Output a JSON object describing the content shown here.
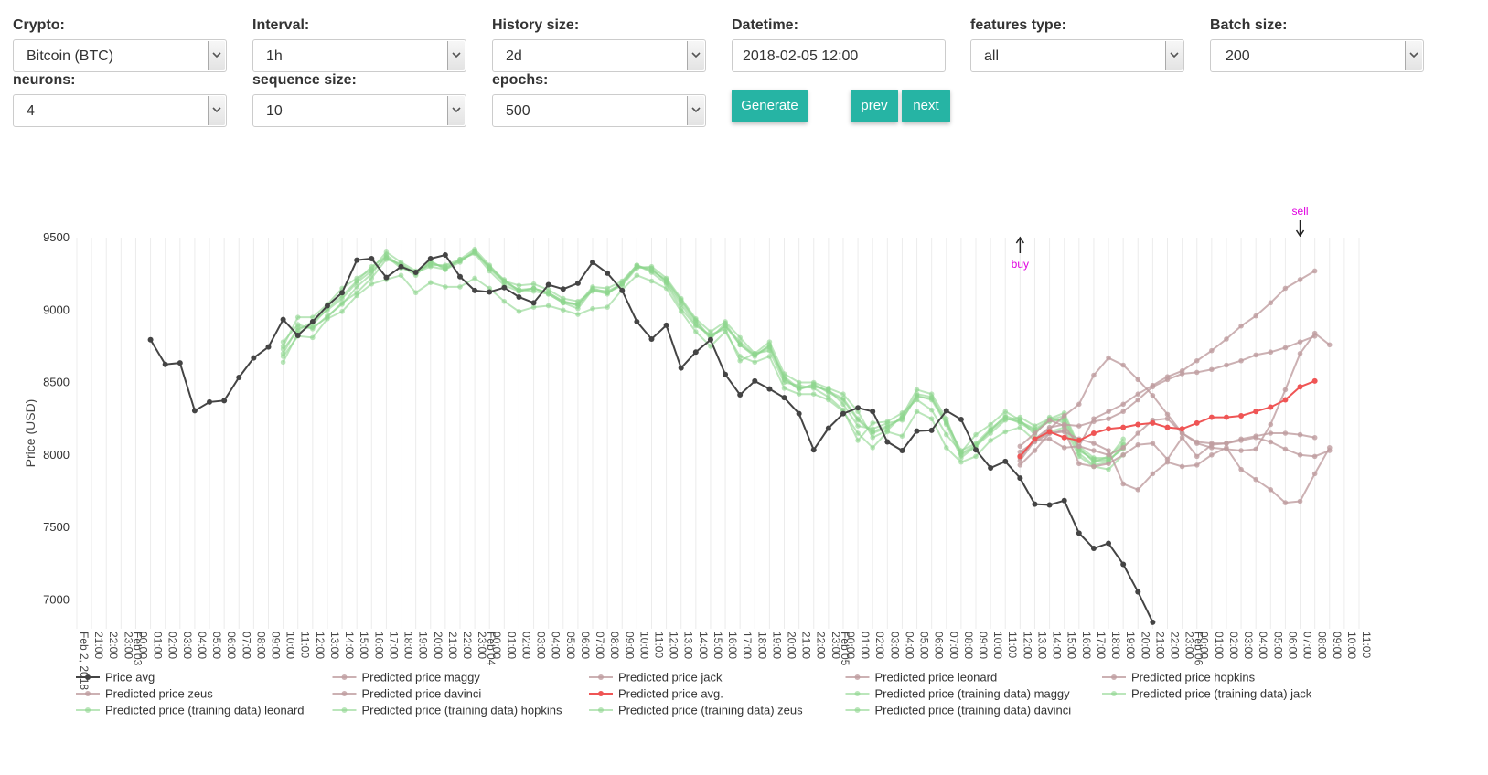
{
  "form": {
    "crypto": {
      "label": "Crypto:",
      "value": "Bitcoin (BTC)"
    },
    "interval": {
      "label": "Interval:",
      "value": "1h"
    },
    "history_size": {
      "label": "History size:",
      "value": "2d"
    },
    "datetime": {
      "label": "Datetime:",
      "value": "2018-02-05 12:00"
    },
    "features_type": {
      "label": "features type:",
      "value": "all"
    },
    "batch_size": {
      "label": "Batch size:",
      "value": "200"
    },
    "neurons": {
      "label": "neurons:",
      "value": "4"
    },
    "sequence_size": {
      "label": "sequence size:",
      "value": "10"
    },
    "epochs": {
      "label": "epochs:",
      "value": "500"
    },
    "generate_label": "Generate",
    "prev_label": "prev",
    "next_label": "next"
  },
  "colors": {
    "accent": "#26b4a4",
    "price": "#444444",
    "pred": "#bf9ea0",
    "pred_avg": "#ef5555",
    "train": "#8ed68e",
    "marker": "#e000e0"
  },
  "chart_data": {
    "type": "line",
    "ylabel": "Price (USD)",
    "xlabel": "",
    "ylim": [
      6800,
      9500
    ],
    "yticks": [
      7000,
      7500,
      8000,
      8500,
      9000,
      9500
    ],
    "grid": "vertical",
    "x_start": "2018-02-02 20:00",
    "x_end": "2018-02-06 11:00",
    "x_step_hours": 1,
    "day_labels": [
      {
        "at": "2018-02-02 20:00",
        "text": "Feb 2, 2018"
      },
      {
        "at": "2018-02-03 00:00",
        "text": "Feb 03"
      },
      {
        "at": "2018-02-04 00:00",
        "text": "Feb 04"
      },
      {
        "at": "2018-02-05 00:00",
        "text": "Feb 05"
      },
      {
        "at": "2018-02-06 00:00",
        "text": "Feb 06"
      }
    ],
    "legend_position": "bottom",
    "annotations": [
      {
        "text": "buy",
        "x": "2018-02-05 12:00",
        "direction": "up"
      },
      {
        "text": "sell",
        "x": "2018-02-06 07:00",
        "direction": "down"
      }
    ],
    "series": [
      {
        "name": "Price avg",
        "role": "price",
        "start": "2018-02-03 01:00",
        "values": [
          8795,
          8625,
          8635,
          8305,
          8365,
          8375,
          8535,
          8670,
          8745,
          8935,
          8825,
          8920,
          9030,
          9120,
          9345,
          9355,
          9225,
          9300,
          9260,
          9355,
          9380,
          9230,
          9135,
          9125,
          9155,
          9090,
          9050,
          9175,
          9145,
          9185,
          9330,
          9255,
          9135,
          8920,
          8800,
          8895,
          8600,
          8710,
          8795,
          8555,
          8415,
          8510,
          8455,
          8395,
          8285,
          8035,
          8185,
          8285,
          8325,
          8300,
          8090,
          8030,
          8165,
          8170,
          8305,
          8245,
          8035,
          7910,
          7955,
          7840,
          7660,
          7655,
          7685,
          7460,
          7355,
          7390,
          7245,
          7055,
          6845
        ]
      },
      {
        "name": "Predicted price maggy",
        "role": "pred",
        "start": "2018-02-05 12:00",
        "values": [
          7960,
          8100,
          8180,
          8270,
          8350,
          8550,
          8670,
          8620,
          8520,
          8410,
          8280,
          8150,
          8080,
          8050,
          8040,
          8030,
          8040,
          8210,
          8450,
          8700,
          8840,
          8760
        ]
      },
      {
        "name": "Predicted price jack",
        "role": "pred",
        "start": "2018-02-05 12:00",
        "values": [
          8060,
          8150,
          8240,
          8200,
          8060,
          8030,
          8000,
          8050,
          8150,
          8240,
          8250,
          8150,
          8090,
          8080,
          8080,
          8100,
          8120,
          8090,
          8040,
          8000,
          7990,
          8030
        ]
      },
      {
        "name": "Predicted price leonard",
        "role": "pred",
        "start": "2018-02-05 12:00",
        "values": [
          7930,
          8030,
          8150,
          8160,
          8110,
          8080,
          8030,
          7800,
          7760,
          7870,
          7950,
          7920,
          7930,
          8000,
          8050,
          7900,
          7830,
          7760,
          7670,
          7680,
          7870,
          8050
        ]
      },
      {
        "name": "Predicted price hopkins",
        "role": "pred",
        "start": "2018-02-05 12:00",
        "values": [
          7990,
          8100,
          8110,
          8050,
          8060,
          8250,
          8300,
          8350,
          8420,
          8480,
          8540,
          8580,
          8650,
          8720,
          8800,
          8890,
          8960,
          9050,
          9150,
          9210,
          9270
        ]
      },
      {
        "name": "Predicted price zeus",
        "role": "pred",
        "start": "2018-02-05 12:00",
        "values": [
          7980,
          8110,
          8190,
          8210,
          8200,
          8230,
          8250,
          8300,
          8380,
          8470,
          8520,
          8560,
          8570,
          8590,
          8620,
          8650,
          8690,
          8710,
          8740,
          8780,
          8820
        ]
      },
      {
        "name": "Predicted price davinci",
        "role": "pred",
        "start": "2018-02-05 12:00",
        "values": [
          8020,
          8090,
          8150,
          8170,
          7940,
          7920,
          7940,
          8000,
          8070,
          8080,
          7970,
          8120,
          7990,
          8070,
          8080,
          8110,
          8130,
          8150,
          8150,
          8140,
          8120
        ]
      },
      {
        "name": "Predicted price avg.",
        "role": "avg",
        "start": "2018-02-05 12:00",
        "values": [
          7990,
          8110,
          8160,
          8120,
          8100,
          8150,
          8180,
          8190,
          8210,
          8220,
          8190,
          8180,
          8220,
          8260,
          8260,
          8270,
          8300,
          8330,
          8380,
          8470,
          8510
        ]
      },
      {
        "name": "Predicted price (training data) maggy",
        "role": "train",
        "start": "2018-02-03 10:00",
        "values": [
          8700,
          8880,
          8880,
          8950,
          9050,
          9120,
          9220,
          9350,
          9320,
          9250,
          9330,
          9290,
          9340,
          9400,
          9300,
          9210,
          9130,
          9150,
          9120,
          9060,
          9040,
          9150,
          9120,
          9180,
          9300,
          9280,
          9200,
          9060,
          8920,
          8800,
          8910,
          8760,
          8680,
          8760,
          8530,
          8450,
          8490,
          8430,
          8380,
          8240,
          8150,
          8190,
          8260,
          8420,
          8400,
          8230,
          8010,
          8070,
          8170,
          8250,
          8230,
          8170,
          8230,
          8250,
          8040,
          7960,
          7960,
          8050
        ]
      },
      {
        "name": "Predicted price (training data) jack",
        "role": "train",
        "start": "2018-02-03 10:00",
        "values": [
          8640,
          8840,
          8900,
          9010,
          9100,
          9200,
          9300,
          9370,
          9290,
          9260,
          9300,
          9280,
          9350,
          9390,
          9270,
          9170,
          9130,
          9150,
          9110,
          9050,
          9040,
          9160,
          9150,
          9200,
          9310,
          9260,
          9180,
          9010,
          8890,
          8830,
          8870,
          8650,
          8700,
          8720,
          8500,
          8480,
          8460,
          8400,
          8310,
          8100,
          8220,
          8230,
          8290,
          8380,
          8310,
          8140,
          8020,
          8140,
          8210,
          8300,
          8240,
          8140,
          8260,
          8220,
          8010,
          7930,
          7950,
          8070
        ]
      },
      {
        "name": "Predicted price (training data) leonard",
        "role": "train",
        "start": "2018-02-03 10:00",
        "values": [
          8750,
          8950,
          8950,
          9040,
          9150,
          9220,
          9280,
          9400,
          9330,
          9270,
          9310,
          9310,
          9350,
          9420,
          9310,
          9200,
          9170,
          9180,
          9140,
          9080,
          9060,
          9130,
          9120,
          9170,
          9290,
          9300,
          9220,
          9080,
          8940,
          8850,
          8920,
          8810,
          8700,
          8780,
          8560,
          8500,
          8500,
          8460,
          8420,
          8300,
          8120,
          8170,
          8270,
          8450,
          8420,
          8250,
          8000,
          8060,
          8150,
          8240,
          8260,
          8200,
          8250,
          8290,
          8060,
          7980,
          7980,
          8110
        ]
      },
      {
        "name": "Predicted price (training data) hopkins",
        "role": "train",
        "start": "2018-02-03 10:00",
        "values": [
          8780,
          8900,
          8870,
          8960,
          9040,
          9160,
          9250,
          9380,
          9300,
          9240,
          9340,
          9280,
          9330,
          9410,
          9290,
          9200,
          9140,
          9130,
          9110,
          9050,
          9010,
          9140,
          9110,
          9190,
          9310,
          9270,
          9210,
          9070,
          8930,
          8810,
          8890,
          8780,
          8690,
          8740,
          8540,
          8460,
          8480,
          8440,
          8390,
          8250,
          8160,
          8200,
          8250,
          8400,
          8390,
          8220,
          8030,
          8080,
          8180,
          8260,
          8220,
          8160,
          8240,
          8240,
          8030,
          7970,
          7970,
          8040
        ]
      },
      {
        "name": "Predicted price (training data) zeus",
        "role": "train",
        "start": "2018-02-03 10:00",
        "values": [
          8680,
          8820,
          8810,
          8940,
          8990,
          9100,
          9180,
          9210,
          9240,
          9120,
          9190,
          9160,
          9160,
          9220,
          9150,
          9060,
          8990,
          9020,
          9030,
          9000,
          8970,
          9010,
          9020,
          9140,
          9240,
          9200,
          9150,
          8990,
          8850,
          8750,
          8850,
          8680,
          8640,
          8680,
          8460,
          8420,
          8420,
          8380,
          8300,
          8150,
          8050,
          8160,
          8130,
          8300,
          8250,
          8050,
          7950,
          7990,
          8100,
          8160,
          8190,
          8100,
          8160,
          8190,
          7990,
          7920,
          7900,
          8000
        ]
      },
      {
        "name": "Predicted price (training data) davinci",
        "role": "train",
        "start": "2018-02-03 10:00",
        "values": [
          8730,
          8860,
          8920,
          9000,
          9080,
          9190,
          9270,
          9360,
          9310,
          9260,
          9320,
          9300,
          9340,
          9400,
          9290,
          9190,
          9140,
          9150,
          9120,
          9060,
          9030,
          9140,
          9130,
          9180,
          9300,
          9290,
          9190,
          9040,
          8900,
          8820,
          8890,
          8760,
          8690,
          8750,
          8520,
          8460,
          8470,
          8450,
          8350,
          8200,
          8180,
          8220,
          8240,
          8410,
          8380,
          8210,
          7980,
          8060,
          8170,
          8270,
          8230,
          8180,
          8240,
          8270,
          8050,
          7950,
          7990,
          8080
        ]
      }
    ]
  }
}
